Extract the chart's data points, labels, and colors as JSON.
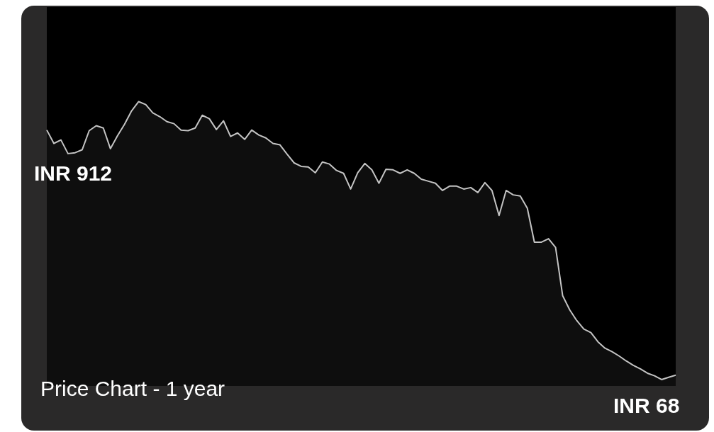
{
  "chart_data": {
    "type": "area",
    "title": "Price Chart - 1 year",
    "categories": [
      null,
      null,
      null,
      null,
      null,
      null,
      null,
      null,
      null,
      null,
      null,
      null,
      null,
      null,
      null,
      null,
      null,
      null,
      null,
      null,
      null,
      null,
      null,
      null,
      null,
      null,
      null,
      null,
      null,
      null,
      null,
      null,
      null,
      null,
      null,
      null,
      null,
      null,
      null,
      null,
      null,
      null,
      null,
      null,
      null,
      null,
      null,
      null,
      null,
      null,
      null,
      null,
      null,
      null,
      null,
      null,
      null,
      null,
      null,
      null,
      null,
      null,
      null,
      null,
      null,
      null,
      null,
      null,
      null,
      null,
      null,
      null,
      null,
      null,
      null,
      null,
      null,
      null,
      null,
      null,
      null,
      null,
      null,
      null,
      null,
      null,
      null,
      null,
      null,
      null
    ],
    "color": "#c4c4c4",
    "values": [
      912,
      866,
      878,
      831,
      834,
      844,
      910,
      927,
      919,
      848,
      892,
      932,
      978,
      1010,
      1000,
      971,
      958,
      941,
      934,
      912,
      910,
      919,
      963,
      951,
      914,
      944,
      890,
      902,
      880,
      912,
      895,
      885,
      866,
      861,
      829,
      799,
      787,
      785,
      765,
      802,
      795,
      773,
      763,
      709,
      765,
      797,
      775,
      729,
      777,
      775,
      763,
      775,
      763,
      743,
      736,
      729,
      704,
      719,
      719,
      709,
      714,
      697,
      731,
      704,
      618,
      704,
      689,
      685,
      643,
      526,
      526,
      538,
      508,
      342,
      293,
      256,
      227,
      215,
      183,
      161,
      149,
      134,
      117,
      102,
      90,
      75,
      66,
      53,
      61,
      68
    ],
    "value_labels": [
      "INR 912",
      null,
      null,
      null,
      null,
      null,
      null,
      null,
      null,
      null,
      null,
      null,
      null,
      null,
      null,
      null,
      null,
      null,
      null,
      null,
      null,
      null,
      null,
      null,
      null,
      null,
      null,
      null,
      null,
      null,
      null,
      null,
      null,
      null,
      null,
      null,
      null,
      null,
      null,
      null,
      null,
      null,
      null,
      null,
      null,
      null,
      null,
      null,
      null,
      null,
      null,
      null,
      null,
      null,
      null,
      null,
      null,
      null,
      null,
      null,
      null,
      null,
      null,
      null,
      null,
      null,
      null,
      null,
      null,
      null,
      null,
      null,
      null,
      null,
      null,
      null,
      null,
      null,
      null,
      null,
      null,
      null,
      null,
      null,
      null,
      null,
      null,
      null,
      null,
      "INR 68"
    ]
  }
}
